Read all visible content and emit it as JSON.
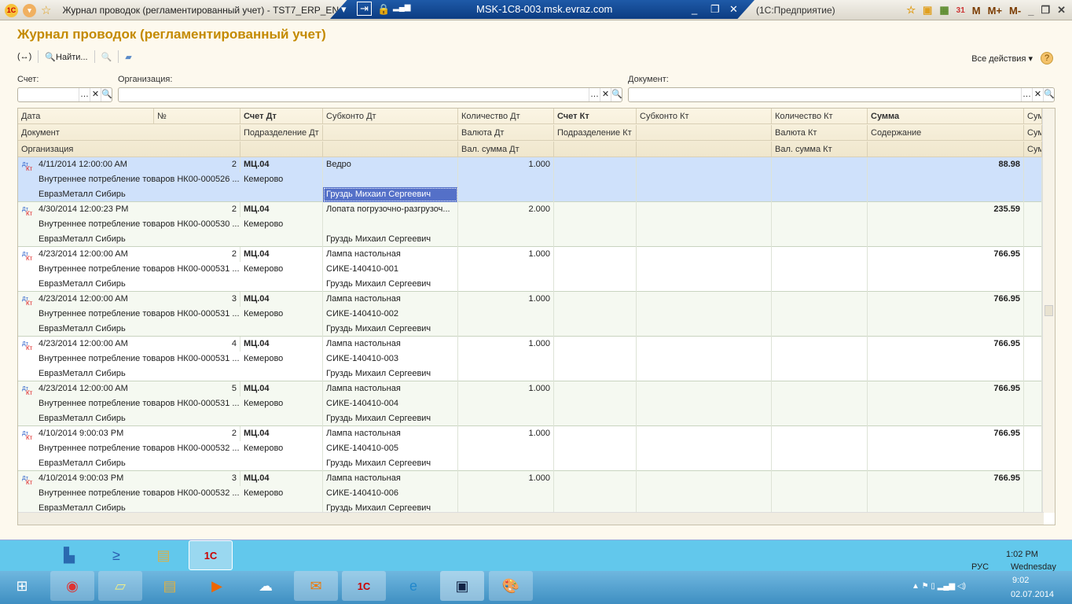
{
  "window": {
    "title": "Журнал проводок (регламентированный учет) - TST7_ERP_EN",
    "rdp_host": "MSK-1C8-003.msk.evraz.com",
    "app_suffix": "(1С:Предприятие)",
    "mem_buttons": [
      "M",
      "M+",
      "M-"
    ]
  },
  "page": {
    "title": "Журнал проводок (регламентированный учет)"
  },
  "toolbar": {
    "find_label": "Найти...",
    "all_actions": "Все действия ▾",
    "help": "?"
  },
  "filters": {
    "account_label": "Счет:",
    "org_label": "Организация:",
    "doc_label": "Документ:",
    "account_value": "",
    "org_value": "",
    "doc_value": ""
  },
  "columns": {
    "date": "Дата",
    "num": "№",
    "acc_dt": "Счет Дт",
    "sub_dt": "Субконто Дт",
    "qty_dt": "Количество Дт",
    "acc_kt": "Счет Кт",
    "sub_kt": "Субконто Кт",
    "qty_kt": "Количество Кт",
    "sum": "Сумма",
    "sum2": "Сум",
    "document": "Документ",
    "dept_dt": "Подразделение Дт",
    "cur_dt": "Валюта Дт",
    "dept_kt": "Подразделение Кт",
    "cur_kt": "Валюта Кт",
    "content": "Содержание",
    "org": "Организация",
    "valsum_dt": "Вал. сумма Дт",
    "valsum_kt": "Вал. сумма Кт"
  },
  "rows": [
    {
      "date": "4/11/2014 12:00:00 AM",
      "num": "2",
      "acc_dt": "МЦ.04",
      "sub1": "Ведро",
      "sub2": "",
      "sub3": "Груздь Михаил Сергеевич",
      "qty": "1.000",
      "sum": "88.98",
      "doc": "Внутреннее потребление товаров НК00-000526 ...",
      "dept": "Кемерово",
      "org": "ЕвразМеталл Сибирь"
    },
    {
      "date": "4/30/2014 12:00:23 PM",
      "num": "2",
      "acc_dt": "МЦ.04",
      "sub1": "Лопата погрузочно-разгрузоч...",
      "sub2": "",
      "sub3": "Груздь Михаил Сергеевич",
      "qty": "2.000",
      "sum": "235.59",
      "doc": "Внутреннее потребление товаров НК00-000530 ...",
      "dept": "Кемерово",
      "org": "ЕвразМеталл Сибирь"
    },
    {
      "date": "4/23/2014 12:00:00 AM",
      "num": "2",
      "acc_dt": "МЦ.04",
      "sub1": "Лампа настольная",
      "sub2": "СИКЕ-140410-001",
      "sub3": "Груздь Михаил Сергеевич",
      "qty": "1.000",
      "sum": "766.95",
      "doc": "Внутреннее потребление товаров НК00-000531 ...",
      "dept": "Кемерово",
      "org": "ЕвразМеталл Сибирь"
    },
    {
      "date": "4/23/2014 12:00:00 AM",
      "num": "3",
      "acc_dt": "МЦ.04",
      "sub1": "Лампа настольная",
      "sub2": "СИКЕ-140410-002",
      "sub3": "Груздь Михаил Сергеевич",
      "qty": "1.000",
      "sum": "766.95",
      "doc": "Внутреннее потребление товаров НК00-000531 ...",
      "dept": "Кемерово",
      "org": "ЕвразМеталл Сибирь"
    },
    {
      "date": "4/23/2014 12:00:00 AM",
      "num": "4",
      "acc_dt": "МЦ.04",
      "sub1": "Лампа настольная",
      "sub2": "СИКЕ-140410-003",
      "sub3": "Груздь Михаил Сергеевич",
      "qty": "1.000",
      "sum": "766.95",
      "doc": "Внутреннее потребление товаров НК00-000531 ...",
      "dept": "Кемерово",
      "org": "ЕвразМеталл Сибирь"
    },
    {
      "date": "4/23/2014 12:00:00 AM",
      "num": "5",
      "acc_dt": "МЦ.04",
      "sub1": "Лампа настольная",
      "sub2": "СИКЕ-140410-004",
      "sub3": "Груздь Михаил Сергеевич",
      "qty": "1.000",
      "sum": "766.95",
      "doc": "Внутреннее потребление товаров НК00-000531 ...",
      "dept": "Кемерово",
      "org": "ЕвразМеталл Сибирь"
    },
    {
      "date": "4/10/2014 9:00:03 PM",
      "num": "2",
      "acc_dt": "МЦ.04",
      "sub1": "Лампа настольная",
      "sub2": "СИКЕ-140410-005",
      "sub3": "Груздь Михаил Сергеевич",
      "qty": "1.000",
      "sum": "766.95",
      "doc": "Внутреннее потребление товаров НК00-000532 ...",
      "dept": "Кемерово",
      "org": "ЕвразМеталл Сибирь"
    },
    {
      "date": "4/10/2014 9:00:03 PM",
      "num": "3",
      "acc_dt": "МЦ.04",
      "sub1": "Лампа настольная",
      "sub2": "СИКЕ-140410-006",
      "sub3": "Груздь Михаил Сергеевич",
      "qty": "1.000",
      "sum": "766.95",
      "doc": "Внутреннее потребление товаров НК00-000532 ...",
      "dept": "Кемерово",
      "org": "ЕвразМеталл Сибирь"
    }
  ],
  "taskbar": {
    "inner_time": "1:02 PM",
    "inner_lang": "РУС",
    "inner_day": "Wednesday",
    "time": "9:02",
    "date": "02.07.2014"
  },
  "colors": {
    "selected_row": "#cfe1fb",
    "selected_cell": "#5470c8",
    "accent": "#c48a00"
  }
}
